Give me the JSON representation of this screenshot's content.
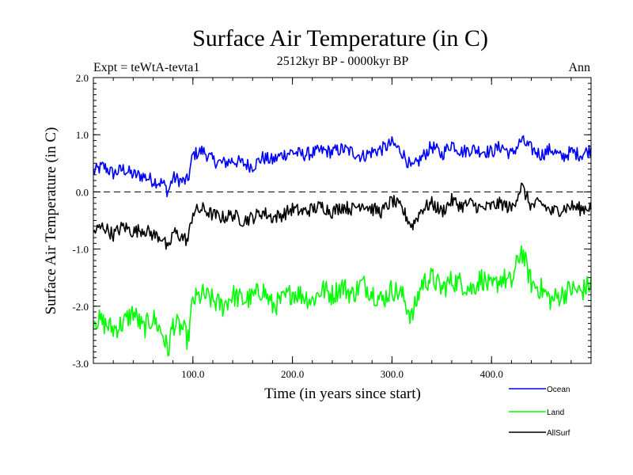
{
  "chart_data": {
    "type": "line",
    "title": "Surface Air Temperature (in C)",
    "subtitle": "2512kyr BP - 0000kyr BP",
    "expt_label": "Expt = teWtA-tevta1",
    "period_label": "Ann",
    "xlabel": "Time (in years since start)",
    "ylabel": "Surface Air Temperature (in C)",
    "xlim": [
      0,
      500
    ],
    "ylim": [
      -3.0,
      2.0
    ],
    "x_ticks": [
      100,
      200,
      300,
      400
    ],
    "x_tick_labels": [
      "100.0",
      "200.0",
      "300.0",
      "400.0"
    ],
    "y_ticks": [
      -3.0,
      -2.0,
      -1.0,
      0.0,
      1.0,
      2.0
    ],
    "y_tick_labels": [
      "-3.0",
      "-2.0",
      "-1.0",
      "0.0",
      "1.0",
      "2.0"
    ],
    "reference_line": {
      "y": 0.0,
      "style": "dashed"
    },
    "legend_position": "bottom-right",
    "series": [
      {
        "name": "Ocean",
        "color": "#0000ff",
        "x": [
          0,
          10,
          20,
          30,
          40,
          50,
          60,
          70,
          75,
          80,
          90,
          95,
          100,
          110,
          120,
          130,
          140,
          150,
          160,
          170,
          180,
          190,
          200,
          210,
          220,
          230,
          240,
          250,
          260,
          270,
          280,
          290,
          300,
          310,
          320,
          330,
          340,
          350,
          360,
          370,
          380,
          390,
          400,
          410,
          420,
          430,
          440,
          450,
          460,
          470,
          480,
          490,
          500
        ],
        "values": [
          0.35,
          0.45,
          0.32,
          0.4,
          0.3,
          0.28,
          0.2,
          0.15,
          0.0,
          0.25,
          0.18,
          0.2,
          0.65,
          0.72,
          0.55,
          0.5,
          0.55,
          0.5,
          0.45,
          0.6,
          0.55,
          0.65,
          0.7,
          0.65,
          0.68,
          0.72,
          0.7,
          0.75,
          0.7,
          0.62,
          0.7,
          0.75,
          0.85,
          0.7,
          0.4,
          0.6,
          0.8,
          0.65,
          0.85,
          0.7,
          0.75,
          0.72,
          0.7,
          0.8,
          0.65,
          0.9,
          0.75,
          0.65,
          0.75,
          0.6,
          0.7,
          0.65,
          0.75
        ]
      },
      {
        "name": "Land",
        "color": "#00ff00",
        "x": [
          0,
          10,
          20,
          30,
          40,
          50,
          60,
          70,
          75,
          80,
          90,
          95,
          100,
          110,
          120,
          130,
          140,
          150,
          160,
          170,
          180,
          190,
          200,
          210,
          220,
          230,
          240,
          250,
          260,
          270,
          280,
          290,
          300,
          310,
          320,
          330,
          340,
          350,
          360,
          370,
          380,
          390,
          400,
          410,
          420,
          430,
          440,
          450,
          460,
          470,
          480,
          490,
          500
        ],
        "values": [
          -2.2,
          -2.3,
          -2.4,
          -2.3,
          -2.1,
          -2.4,
          -2.2,
          -2.5,
          -2.8,
          -2.3,
          -2.4,
          -2.6,
          -1.9,
          -1.8,
          -1.9,
          -2.0,
          -1.8,
          -1.9,
          -1.85,
          -1.7,
          -2.0,
          -1.9,
          -1.75,
          -1.8,
          -1.9,
          -1.7,
          -1.8,
          -1.65,
          -1.8,
          -1.6,
          -1.75,
          -1.9,
          -1.7,
          -1.8,
          -2.2,
          -1.6,
          -1.5,
          -1.7,
          -1.55,
          -1.6,
          -1.7,
          -1.5,
          -1.7,
          -1.5,
          -1.6,
          -1.0,
          -1.6,
          -1.7,
          -1.9,
          -1.8,
          -1.7,
          -1.75,
          -1.6
        ]
      },
      {
        "name": "AllSurf",
        "color": "#000000",
        "x": [
          0,
          10,
          20,
          30,
          40,
          50,
          60,
          70,
          75,
          80,
          90,
          95,
          100,
          110,
          120,
          130,
          140,
          150,
          160,
          170,
          180,
          190,
          200,
          210,
          220,
          230,
          240,
          250,
          260,
          270,
          280,
          290,
          300,
          310,
          320,
          330,
          340,
          350,
          360,
          370,
          380,
          390,
          400,
          410,
          420,
          430,
          440,
          450,
          460,
          470,
          480,
          490,
          500
        ],
        "values": [
          -0.7,
          -0.6,
          -0.75,
          -0.6,
          -0.7,
          -0.65,
          -0.75,
          -0.8,
          -1.05,
          -0.7,
          -0.8,
          -0.85,
          -0.35,
          -0.3,
          -0.4,
          -0.45,
          -0.4,
          -0.5,
          -0.45,
          -0.35,
          -0.45,
          -0.4,
          -0.3,
          -0.35,
          -0.3,
          -0.25,
          -0.35,
          -0.25,
          -0.3,
          -0.2,
          -0.3,
          -0.35,
          -0.15,
          -0.3,
          -0.6,
          -0.3,
          -0.2,
          -0.35,
          -0.15,
          -0.25,
          -0.2,
          -0.3,
          -0.25,
          -0.2,
          -0.3,
          0.1,
          -0.25,
          -0.2,
          -0.35,
          -0.3,
          -0.25,
          -0.3,
          -0.25
        ]
      }
    ]
  }
}
